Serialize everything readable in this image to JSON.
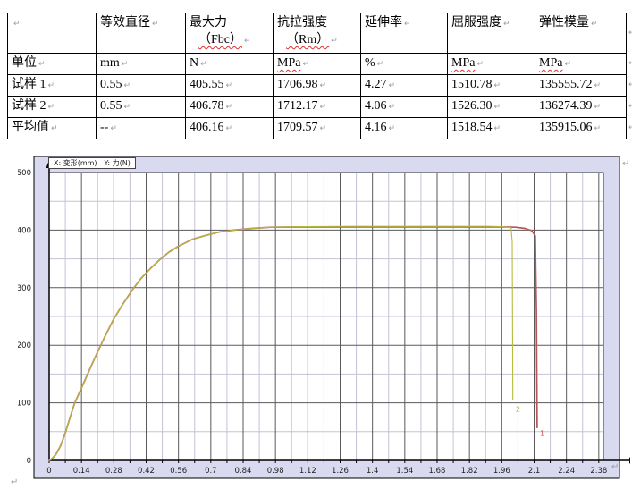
{
  "marks": {
    "pilcrow": "↵"
  },
  "table": {
    "columns": [
      {
        "title": ""
      },
      {
        "title": "等效直径"
      },
      {
        "title": "最大力",
        "subtitle": "（Fbc）"
      },
      {
        "title": "抗拉强度",
        "subtitle": "（Rm）"
      },
      {
        "title": "延伸率"
      },
      {
        "title": "屈服强度"
      },
      {
        "title": "弹性模量"
      }
    ],
    "rows": [
      {
        "label": "单位",
        "cells": [
          "mm",
          "N",
          "MPa",
          "%",
          "MPa",
          "MPa"
        ]
      },
      {
        "label": "试样 1",
        "cells": [
          "0.55",
          "405.55",
          "1706.98",
          "4.27",
          "1510.78",
          "135555.72"
        ]
      },
      {
        "label": "试样 2",
        "cells": [
          "0.55",
          "406.78",
          "1712.17",
          "4.06",
          "1526.30",
          "136274.39"
        ]
      },
      {
        "label": "平均值",
        "cells": [
          "--",
          "406.16",
          "1709.57",
          "4.16",
          "1518.54",
          "135915.06"
        ]
      }
    ]
  },
  "chart_data": {
    "type": "line",
    "legend": "X: 变形(mm)　Y: 力(N)",
    "xlabel": "变形(mm)",
    "ylabel": "力(N)",
    "xlim": [
      0,
      2.4
    ],
    "ylim": [
      0,
      500
    ],
    "x_ticks": [
      0,
      0.14,
      0.28,
      0.42,
      0.56,
      0.7,
      0.84,
      0.98,
      1.12,
      1.26,
      1.4,
      1.54,
      1.68,
      1.82,
      1.96,
      2.1,
      2.24,
      2.38
    ],
    "x_tick_labels": [
      "0",
      "0.14",
      "0.28",
      "0.42",
      "0.56",
      "0.7",
      "0.84",
      "0.98",
      "1.12",
      "1.26",
      "1.4",
      "1.54",
      "1.68",
      "1.82",
      "1.96",
      "2.1",
      "2.24",
      "2.38"
    ],
    "y_ticks": [
      0,
      100,
      200,
      300,
      400,
      500
    ],
    "minor_x_step": 0.07,
    "minor_y_step": 50,
    "grid": true,
    "colors": {
      "plot_bg": "#ffffff",
      "margin_bg": "#d9d9f0",
      "major_grid": "#5a5a5a",
      "minor_grid": "#c3c3d6"
    },
    "series": [
      {
        "name": "试样1",
        "color": "#b5565c",
        "points": [
          [
            0,
            0
          ],
          [
            0.01,
            2
          ],
          [
            0.03,
            11
          ],
          [
            0.05,
            26
          ],
          [
            0.07,
            48
          ],
          [
            0.09,
            74
          ],
          [
            0.11,
            99
          ],
          [
            0.14,
            126
          ],
          [
            0.17,
            153
          ],
          [
            0.2,
            180
          ],
          [
            0.24,
            214
          ],
          [
            0.28,
            246
          ],
          [
            0.32,
            272
          ],
          [
            0.36,
            296
          ],
          [
            0.4,
            317
          ],
          [
            0.44,
            334
          ],
          [
            0.48,
            349
          ],
          [
            0.52,
            362
          ],
          [
            0.56,
            372
          ],
          [
            0.62,
            384
          ],
          [
            0.68,
            391
          ],
          [
            0.74,
            397
          ],
          [
            0.8,
            400
          ],
          [
            0.88,
            403
          ],
          [
            0.96,
            405
          ],
          [
            1.1,
            405.5
          ],
          [
            1.3,
            405.5
          ],
          [
            1.5,
            405.5
          ],
          [
            1.7,
            405.5
          ],
          [
            1.9,
            405.5
          ],
          [
            1.96,
            405.5
          ],
          [
            2.02,
            405
          ],
          [
            2.06,
            403
          ],
          [
            2.09,
            399
          ],
          [
            2.105,
            390
          ],
          [
            2.11,
            260
          ],
          [
            2.113,
            57
          ]
        ]
      },
      {
        "name": "试样2",
        "color": "#b5bd3c",
        "points": [
          [
            0,
            0
          ],
          [
            0.01,
            2
          ],
          [
            0.03,
            11
          ],
          [
            0.05,
            26
          ],
          [
            0.07,
            48
          ],
          [
            0.09,
            74
          ],
          [
            0.11,
            99
          ],
          [
            0.14,
            126
          ],
          [
            0.17,
            153
          ],
          [
            0.2,
            180
          ],
          [
            0.24,
            214
          ],
          [
            0.28,
            246
          ],
          [
            0.32,
            272
          ],
          [
            0.36,
            296
          ],
          [
            0.4,
            317
          ],
          [
            0.44,
            334
          ],
          [
            0.48,
            349
          ],
          [
            0.52,
            362
          ],
          [
            0.56,
            372
          ],
          [
            0.62,
            384
          ],
          [
            0.68,
            391
          ],
          [
            0.74,
            397
          ],
          [
            0.8,
            400
          ],
          [
            0.88,
            403
          ],
          [
            0.96,
            405
          ],
          [
            1.1,
            406
          ],
          [
            1.3,
            406.5
          ],
          [
            1.5,
            406.5
          ],
          [
            1.7,
            406.5
          ],
          [
            1.9,
            406.5
          ],
          [
            1.96,
            406
          ],
          [
            2.0,
            404
          ],
          [
            2.005,
            380
          ],
          [
            2.008,
            105
          ]
        ]
      }
    ],
    "annotations": [
      {
        "text": "1",
        "x": 2.135,
        "y": 43,
        "color": "#c05050"
      },
      {
        "text": "2",
        "x": 2.03,
        "y": 85,
        "color": "#a8b23a"
      }
    ]
  }
}
